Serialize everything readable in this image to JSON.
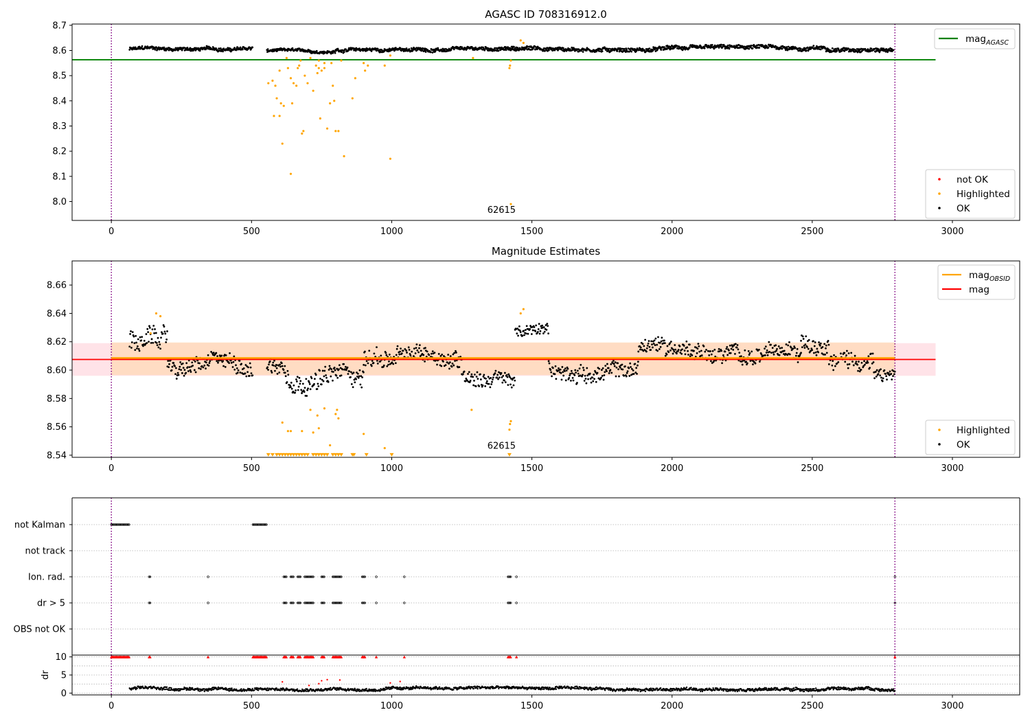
{
  "figure": {
    "title": "AGASC ID 708316912.0"
  },
  "colors": {
    "ok": "#000000",
    "highlighted": "#FFA500",
    "not_ok": "#FF0000",
    "agasc_line": "#008000",
    "mean_line": "#FF0000",
    "obsid_line": "#FFA500",
    "std_band": "#FFC0CB",
    "obsid_band": "#FFDAB9",
    "vline": "#800080",
    "grid": "#B0B0B0"
  },
  "chart_data": [
    {
      "type": "scatter",
      "title": "",
      "xlim": [
        -140,
        3240
      ],
      "ylim": [
        7.925,
        8.705
      ],
      "xticks": [
        0,
        500,
        1000,
        1500,
        2000,
        2500,
        3000
      ],
      "yticks": [
        8.0,
        8.1,
        8.2,
        8.3,
        8.4,
        8.5,
        8.6,
        8.7
      ],
      "ytick_labels": [
        "8.0",
        "8.1",
        "8.2",
        "8.3",
        "8.4",
        "8.5",
        "8.6",
        "8.7"
      ],
      "series": [
        {
          "name": "not OK",
          "color": "#FF0000",
          "points": []
        },
        {
          "name": "Highlighted",
          "color": "#FFA500",
          "points": [
            [
              560,
              8.47
            ],
            [
              575,
              8.48
            ],
            [
              585,
              8.46
            ],
            [
              580,
              8.34
            ],
            [
              590,
              8.41
            ],
            [
              600,
              8.34
            ],
            [
              605,
              8.39
            ],
            [
              600,
              8.52
            ],
            [
              615,
              8.38
            ],
            [
              610,
              8.23
            ],
            [
              625,
              8.57
            ],
            [
              630,
              8.53
            ],
            [
              640,
              8.49
            ],
            [
              645,
              8.39
            ],
            [
              650,
              8.47
            ],
            [
              660,
              8.46
            ],
            [
              665,
              8.53
            ],
            [
              670,
              8.54
            ],
            [
              675,
              8.56
            ],
            [
              680,
              8.27
            ],
            [
              685,
              8.28
            ],
            [
              690,
              8.5
            ],
            [
              700,
              8.47
            ],
            [
              710,
              8.57
            ],
            [
              720,
              8.44
            ],
            [
              730,
              8.54
            ],
            [
              735,
              8.51
            ],
            [
              740,
              8.53
            ],
            [
              745,
              8.33
            ],
            [
              750,
              8.52
            ],
            [
              760,
              8.53
            ],
            [
              770,
              8.29
            ],
            [
              780,
              8.39
            ],
            [
              785,
              8.55
            ],
            [
              790,
              8.46
            ],
            [
              795,
              8.4
            ],
            [
              800,
              8.28
            ],
            [
              810,
              8.28
            ],
            [
              820,
              8.56
            ],
            [
              830,
              8.18
            ],
            [
              860,
              8.41
            ],
            [
              870,
              8.49
            ],
            [
              905,
              8.52
            ],
            [
              915,
              8.54
            ],
            [
              975,
              8.54
            ],
            [
              995,
              8.17
            ],
            [
              1290,
              8.57
            ],
            [
              1420,
              8.53
            ],
            [
              1422,
              8.54
            ],
            [
              1425,
              8.56
            ],
            [
              1425,
              7.99
            ],
            [
              1460,
              8.64
            ],
            [
              1470,
              8.63
            ],
            [
              640,
              8.11
            ],
            [
              740,
              8.56
            ],
            [
              760,
              8.55
            ],
            [
              900,
              8.55
            ],
            [
              995,
              8.58
            ]
          ]
        },
        {
          "name": "OK",
          "color": "#000000",
          "points": []
        }
      ],
      "ok_segments": [
        {
          "x0": 65,
          "x1": 505,
          "baseline": 8.605,
          "wobble": 0.012
        },
        {
          "x0": 555,
          "x1": 800,
          "baseline": 8.598,
          "wobble": 0.01
        },
        {
          "x0": 800,
          "x1": 1420,
          "baseline": 8.603,
          "wobble": 0.012
        },
        {
          "x0": 1420,
          "x1": 2790,
          "baseline": 8.608,
          "wobble": 0.014
        }
      ],
      "hlines": [
        {
          "name": "mag_AGASC",
          "y": 8.563,
          "x0": -140,
          "x1": 2940,
          "color": "#008000"
        }
      ],
      "vlines": [
        0,
        2795
      ],
      "annotations": [
        {
          "text": "62615",
          "x": 1395,
          "y": 7.96
        }
      ],
      "legends": [
        {
          "position": "top-right",
          "items": [
            {
              "label_main": "mag",
              "label_sub": "AGASC",
              "kind": "line",
              "color": "#008000"
            }
          ]
        },
        {
          "position": "bottom-right",
          "items": [
            {
              "label": "not OK",
              "kind": "dot",
              "color": "#FF0000"
            },
            {
              "label": "Highlighted",
              "kind": "dot",
              "color": "#FFA500"
            },
            {
              "label": "OK",
              "kind": "dot",
              "color": "#000000"
            }
          ]
        }
      ]
    },
    {
      "type": "scatter",
      "title": "Magnitude Estimates",
      "xlim": [
        -140,
        3240
      ],
      "ylim": [
        8.5385,
        8.677
      ],
      "xticks": [
        0,
        500,
        1000,
        1500,
        2000,
        2500,
        3000
      ],
      "yticks": [
        8.54,
        8.56,
        8.58,
        8.6,
        8.62,
        8.64,
        8.66
      ],
      "ytick_labels": [
        "8.54",
        "8.56",
        "8.58",
        "8.60",
        "8.62",
        "8.64",
        "8.66"
      ],
      "std_band": [
        8.596,
        8.619
      ],
      "obsid_band": [
        8.5965,
        8.6195
      ],
      "series": [
        {
          "name": "Highlighted",
          "color": "#FFA500",
          "points": [
            [
              140,
              8.626
            ],
            [
              160,
              8.64
            ],
            [
              175,
              8.638
            ],
            [
              610,
              8.563
            ],
            [
              630,
              8.557
            ],
            [
              640,
              8.557
            ],
            [
              680,
              8.557
            ],
            [
              710,
              8.572
            ],
            [
              720,
              8.556
            ],
            [
              735,
              8.568
            ],
            [
              740,
              8.559
            ],
            [
              760,
              8.573
            ],
            [
              780,
              8.547
            ],
            [
              800,
              8.569
            ],
            [
              810,
              8.566
            ],
            [
              805,
              8.572
            ],
            [
              900,
              8.555
            ],
            [
              975,
              8.545
            ],
            [
              1285,
              8.572
            ],
            [
              1420,
              8.558
            ],
            [
              1422,
              8.562
            ],
            [
              1425,
              8.564
            ],
            [
              1460,
              8.64
            ],
            [
              1470,
              8.643
            ]
          ]
        },
        {
          "name": "OK",
          "color": "#000000",
          "points": []
        }
      ],
      "floor_markers": {
        "y": 8.54,
        "xs": [
          560,
          575,
          590,
          600,
          610,
          620,
          630,
          640,
          650,
          660,
          670,
          680,
          690,
          700,
          720,
          730,
          740,
          750,
          760,
          770,
          790,
          800,
          810,
          820,
          860,
          865,
          910,
          1000,
          1420
        ]
      },
      "ok_segments": [
        {
          "x0": 65,
          "x1": 200,
          "baseline": 8.622,
          "wobble": 0.012
        },
        {
          "x0": 200,
          "x1": 505,
          "baseline": 8.604,
          "wobble": 0.01
        },
        {
          "x0": 555,
          "x1": 620,
          "baseline": 8.603,
          "wobble": 0.011
        },
        {
          "x0": 620,
          "x1": 900,
          "baseline": 8.595,
          "wobble": 0.012
        },
        {
          "x0": 900,
          "x1": 1250,
          "baseline": 8.607,
          "wobble": 0.011
        },
        {
          "x0": 1250,
          "x1": 1440,
          "baseline": 8.598,
          "wobble": 0.01
        },
        {
          "x0": 1440,
          "x1": 1560,
          "baseline": 8.626,
          "wobble": 0.007
        },
        {
          "x0": 1560,
          "x1": 1880,
          "baseline": 8.601,
          "wobble": 0.01
        },
        {
          "x0": 1880,
          "x1": 2130,
          "baseline": 8.617,
          "wobble": 0.01
        },
        {
          "x0": 2130,
          "x1": 2460,
          "baseline": 8.609,
          "wobble": 0.01
        },
        {
          "x0": 2460,
          "x1": 2560,
          "baseline": 8.621,
          "wobble": 0.01
        },
        {
          "x0": 2560,
          "x1": 2720,
          "baseline": 8.606,
          "wobble": 0.011
        },
        {
          "x0": 2720,
          "x1": 2795,
          "baseline": 8.595,
          "wobble": 0.008
        }
      ],
      "hlines": [
        {
          "name": "mag_OBSID",
          "y": 8.6085,
          "x0": -140,
          "x1": 2940,
          "color": "#FFA500"
        },
        {
          "name": "mag",
          "y": 8.6075,
          "x0": -140,
          "x1": 2940,
          "color": "#FF0000"
        }
      ],
      "vlines": [
        0,
        2795
      ],
      "annotations": [
        {
          "text": "62615",
          "x": 1395,
          "y": 8.5435
        }
      ],
      "legends": [
        {
          "position": "top-right",
          "items": [
            {
              "label_main": "mag",
              "label_sub": "OBSID",
              "kind": "line",
              "color": "#FFA500"
            },
            {
              "label": "mag",
              "kind": "line",
              "color": "#FF0000"
            }
          ]
        },
        {
          "position": "bottom-right",
          "items": [
            {
              "label": "Highlighted",
              "kind": "dot",
              "color": "#FFA500"
            },
            {
              "label": "OK",
              "kind": "dot",
              "color": "#000000"
            }
          ]
        }
      ]
    },
    {
      "type": "scatter",
      "title": "",
      "xlim": [
        -140,
        3240
      ],
      "categories": [
        "not Kalman",
        "not track",
        "Ion. rad.",
        "dr > 5",
        "OBS not OK"
      ],
      "flags": {
        "not Kalman": [
          [
            0,
            65
          ],
          [
            505,
            555
          ]
        ],
        "not track": [],
        "Ion. rad.": [
          [
            135,
            140
          ],
          [
            345,
            345
          ],
          [
            615,
            625
          ],
          [
            640,
            650
          ],
          [
            665,
            675
          ],
          [
            690,
            720
          ],
          [
            750,
            760
          ],
          [
            790,
            820
          ],
          [
            895,
            905
          ],
          [
            945,
            945
          ],
          [
            1045,
            1045
          ],
          [
            1415,
            1425
          ],
          [
            1445,
            1445
          ],
          [
            2795,
            2795
          ]
        ],
        "dr > 5": [
          [
            135,
            140
          ],
          [
            345,
            345
          ],
          [
            615,
            625
          ],
          [
            640,
            650
          ],
          [
            665,
            675
          ],
          [
            690,
            720
          ],
          [
            750,
            760
          ],
          [
            790,
            820
          ],
          [
            895,
            905
          ],
          [
            945,
            945
          ],
          [
            1045,
            1045
          ],
          [
            1415,
            1425
          ],
          [
            1445,
            1445
          ],
          [
            2795,
            2795
          ]
        ],
        "OBS not OK": []
      },
      "vlines": [
        0,
        2795
      ]
    },
    {
      "type": "scatter",
      "title": "",
      "xlim": [
        -140,
        3240
      ],
      "ylim": [
        -0.5,
        10.5
      ],
      "xticks": [
        0,
        500,
        1000,
        1500,
        2000,
        2500,
        3000
      ],
      "yticks": [
        0,
        5,
        10
      ],
      "ylabel": "dr",
      "clipped_value": 10,
      "clipped_ranges": [
        [
          0,
          65
        ],
        [
          135,
          140
        ],
        [
          345,
          345
        ],
        [
          505,
          555
        ],
        [
          615,
          625
        ],
        [
          640,
          650
        ],
        [
          665,
          675
        ],
        [
          690,
          720
        ],
        [
          750,
          760
        ],
        [
          790,
          820
        ],
        [
          895,
          905
        ],
        [
          945,
          945
        ],
        [
          1045,
          1045
        ],
        [
          1415,
          1425
        ],
        [
          1445,
          1445
        ],
        [
          2795,
          2795
        ]
      ],
      "stray_points": [
        [
          610,
          3.1
        ],
        [
          705,
          2.1
        ],
        [
          740,
          2.6
        ],
        [
          750,
          3.4
        ],
        [
          770,
          3.7
        ],
        [
          815,
          3.6
        ],
        [
          995,
          2.8
        ],
        [
          1030,
          3.2
        ]
      ],
      "ok_segments": [
        {
          "x0": 65,
          "x1": 2795,
          "baseline": 1.2,
          "wobble": 0.7
        }
      ],
      "vlines": [
        0,
        2795
      ]
    }
  ],
  "annotation_text": "62615"
}
